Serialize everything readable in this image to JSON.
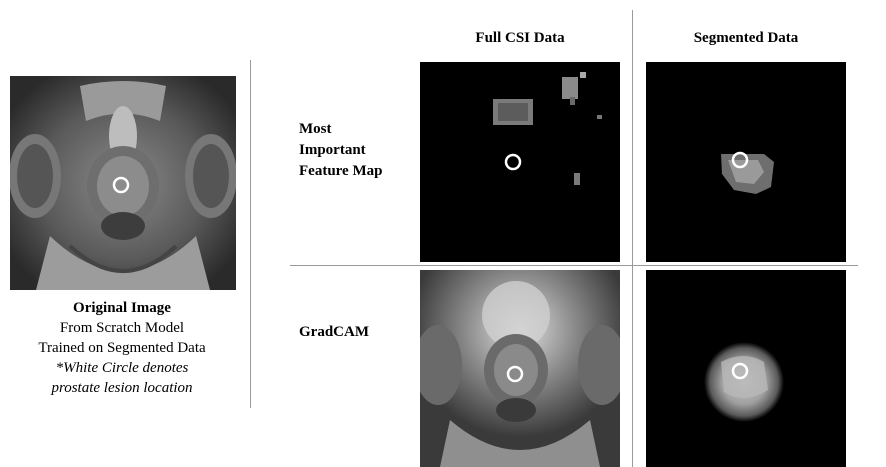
{
  "columns": {
    "full_csi": "Full CSI Data",
    "segmented": "Segmented Data"
  },
  "rows": {
    "feature_map": [
      "Most",
      "Important",
      "Feature Map"
    ],
    "gradcam": "GradCAM"
  },
  "caption": {
    "title": "Original Image",
    "line1": "From Scratch Model",
    "line2": "Trained on Segmented Data",
    "note_line1": "*White Circle denotes",
    "note_line2": "prostate lesion location"
  },
  "colors": {
    "background": "#ffffff",
    "panel_background": "#000000",
    "divider": "#9a9a9a",
    "lesion_marker": "#ffffff"
  },
  "figure": {
    "panel_style": "grayscale MRI",
    "marker": "white circle"
  }
}
